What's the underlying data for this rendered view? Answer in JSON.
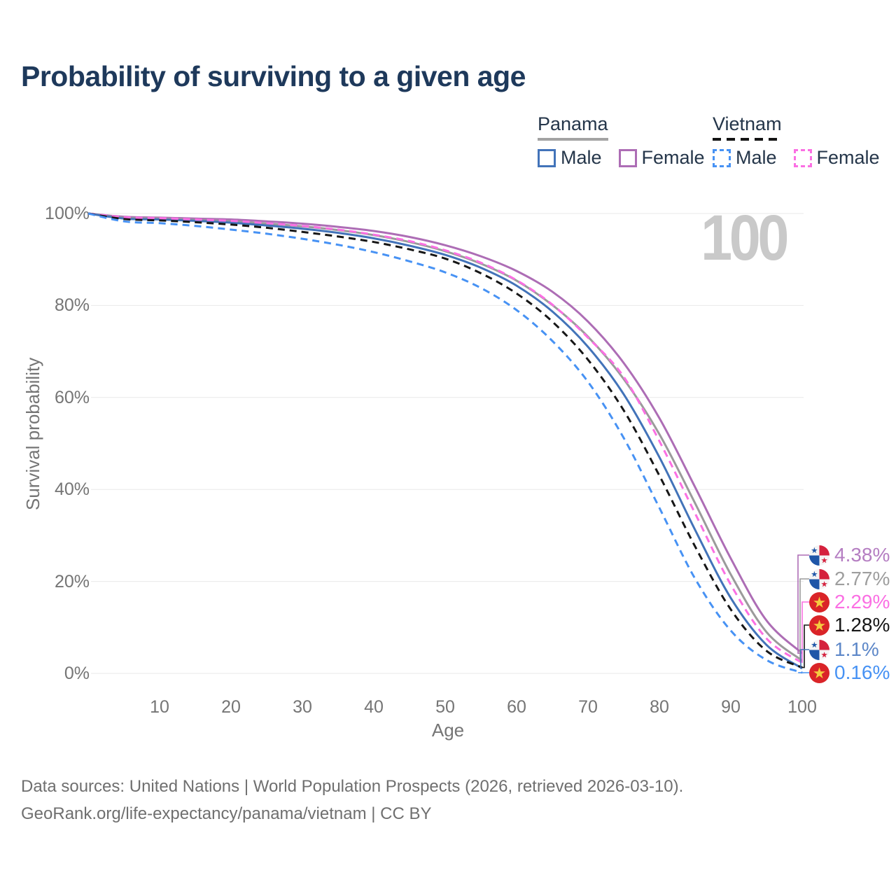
{
  "title": "Probability of surviving to a given age",
  "watermark": "100",
  "legend": {
    "groups": [
      {
        "title": "Panama",
        "line_style": "solid",
        "line_color": "#a3a3a3",
        "items": [
          {
            "label": "Male",
            "color": "#4273b9"
          },
          {
            "label": "Female",
            "color": "#ad6db5"
          }
        ]
      },
      {
        "title": "Vietnam",
        "line_style": "dashed",
        "line_color": "#141414",
        "items": [
          {
            "label": "Male",
            "color": "#4792f4"
          },
          {
            "label": "Female",
            "color": "#fb6fe3"
          }
        ]
      }
    ]
  },
  "chart_data": {
    "type": "line",
    "title": "Probability of surviving to a given age",
    "xlabel": "Age",
    "ylabel": "Survival probability",
    "xlim": [
      0,
      100
    ],
    "ylim": [
      0,
      100
    ],
    "grid": "horizontal-only",
    "legend_position": "top-right",
    "highlighted_age": "100",
    "x_ticks": [
      "10",
      "20",
      "30",
      "40",
      "50",
      "60",
      "70",
      "80",
      "90",
      "100"
    ],
    "x_tick_values": [
      10,
      20,
      30,
      40,
      50,
      60,
      70,
      80,
      90,
      100
    ],
    "y_ticks": [
      "0%",
      "20%",
      "40%",
      "60%",
      "80%",
      "100%"
    ],
    "y_tick_values": [
      0,
      20,
      40,
      60,
      80,
      100
    ],
    "ages": [
      0,
      5,
      10,
      15,
      20,
      25,
      30,
      35,
      40,
      45,
      50,
      55,
      60,
      65,
      70,
      75,
      80,
      85,
      90,
      95,
      100
    ],
    "series": [
      {
        "name": "Panama Female",
        "country": "Panama",
        "sex": "female",
        "color": "#ad6db5",
        "dashed": false,
        "end_label": "4.38%",
        "values": [
          100,
          99.3,
          99.1,
          98.9,
          98.7,
          98.3,
          97.8,
          97.1,
          96.2,
          94.9,
          93.1,
          90.7,
          87.5,
          83.0,
          76.5,
          67.5,
          55.5,
          40.5,
          25.0,
          11.5,
          4.38
        ]
      },
      {
        "name": "Panama",
        "country": "Panama",
        "sex": "all",
        "color": "#9b9b9b",
        "dashed": false,
        "end_label": "2.77%",
        "values": [
          100,
          99.1,
          98.9,
          98.6,
          98.3,
          97.8,
          97.2,
          96.4,
          95.3,
          93.8,
          91.8,
          89.1,
          85.4,
          80.1,
          73.2,
          64.0,
          52.0,
          37.0,
          21.5,
          9.0,
          2.77
        ]
      },
      {
        "name": "Vietnam Female",
        "country": "Vietnam",
        "sex": "female",
        "color": "#fb6fe3",
        "dashed": true,
        "end_label": "2.29%",
        "values": [
          100,
          99.2,
          99.0,
          98.7,
          98.4,
          97.9,
          97.3,
          96.5,
          95.4,
          94.0,
          92.0,
          89.3,
          85.5,
          80.2,
          73.0,
          64.5,
          50.5,
          34.8,
          19.3,
          7.6,
          2.29
        ]
      },
      {
        "name": "Vietnam",
        "country": "Vietnam",
        "sex": "all",
        "color": "#161616",
        "dashed": true,
        "end_label": "1.28%",
        "values": [
          100,
          98.8,
          98.5,
          98.1,
          97.6,
          96.9,
          96.0,
          95.0,
          93.8,
          92.2,
          90.2,
          87.0,
          82.6,
          76.5,
          68.2,
          57.2,
          43.0,
          27.6,
          13.9,
          4.9,
          1.28
        ]
      },
      {
        "name": "Panama Male",
        "country": "Panama",
        "sex": "male",
        "color": "#4273b9",
        "dashed": false,
        "end_label": "1.1%",
        "values": [
          100,
          98.9,
          98.7,
          98.4,
          98.0,
          97.4,
          96.7,
          95.8,
          94.6,
          93.0,
          91.0,
          88.2,
          84.3,
          78.7,
          71.0,
          60.7,
          47.0,
          31.2,
          16.4,
          6.2,
          1.1
        ]
      },
      {
        "name": "Vietnam Male",
        "country": "Vietnam",
        "sex": "male",
        "color": "#4792f4",
        "dashed": true,
        "end_label": "0.16%",
        "values": [
          100,
          98.3,
          97.9,
          97.3,
          96.5,
          95.6,
          94.5,
          93.2,
          91.6,
          89.6,
          87.2,
          83.8,
          79.0,
          72.3,
          63.4,
          51.2,
          36.0,
          20.6,
          9.3,
          2.9,
          0.16
        ]
      }
    ]
  },
  "end_labels": [
    {
      "text": "4.38%",
      "series": "Panama Female",
      "flag": "panama",
      "flag_ref": "#flag-panama",
      "color": "#b57ec2"
    },
    {
      "text": "2.77%",
      "series": "Panama",
      "flag": "panama",
      "flag_ref": "#flag-panama",
      "color": "#9e9e9e"
    },
    {
      "text": "2.29%",
      "series": "Vietnam Female",
      "flag": "vietnam",
      "flag_ref": "#flag-vietnam",
      "color": "#fb6fe3"
    },
    {
      "text": "1.28%",
      "series": "Vietnam",
      "flag": "vietnam",
      "flag_ref": "#flag-vietnam",
      "color": "#161616"
    },
    {
      "text": "1.1%",
      "series": "Panama Male",
      "flag": "panama",
      "flag_ref": "#flag-panama",
      "color": "#5d87c8"
    },
    {
      "text": "0.16%",
      "series": "Vietnam Male",
      "flag": "vietnam",
      "flag_ref": "#flag-vietnam",
      "color": "#4792f4"
    }
  ],
  "footer": {
    "line1": "Data sources: United Nations | World Population Prospects (2026, retrieved 2026-03-10).",
    "line2": "GeoRank.org/life-expectancy/panama/vietnam | CC BY"
  },
  "colors": {
    "title_text": "#1e395b",
    "axis_text": "#757575",
    "gridline": "#e9e9e9",
    "watermark": "#c9c9c9",
    "footer_text": "#6f6f6f"
  }
}
